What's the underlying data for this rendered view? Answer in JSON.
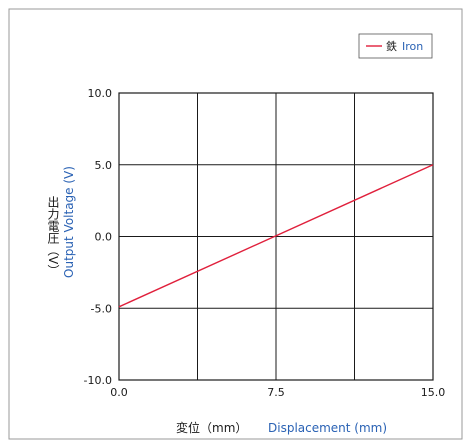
{
  "chart_data": {
    "type": "line",
    "xlabel_jp": "変位（mm）",
    "xlabel_en": "Displacement (mm)",
    "ylabel_jp": "出力電圧（V）",
    "ylabel_en": "Output Voltage (V)",
    "xlim": [
      0,
      15
    ],
    "ylim": [
      -10,
      10
    ],
    "x_ticks": [
      "0.0",
      "7.5",
      "15.0"
    ],
    "y_ticks": [
      "10.0",
      "5.0",
      "0.0",
      "-5.0",
      "-10.0"
    ],
    "x_grid_values": [
      0,
      3.75,
      7.5,
      11.25,
      15
    ],
    "y_grid_values": [
      -10,
      -5,
      0,
      5,
      10
    ],
    "grid": true,
    "legend_position": "top-right",
    "series": [
      {
        "name_jp": "鉄",
        "name_en": "Iron",
        "color": "#e0203c",
        "x": [
          0,
          15
        ],
        "y": [
          -4.9,
          5.0
        ]
      }
    ]
  },
  "colors": {
    "axis": "#1a1a1a",
    "blue_text": "#2a62b4",
    "frame": "#9a9a9a"
  }
}
